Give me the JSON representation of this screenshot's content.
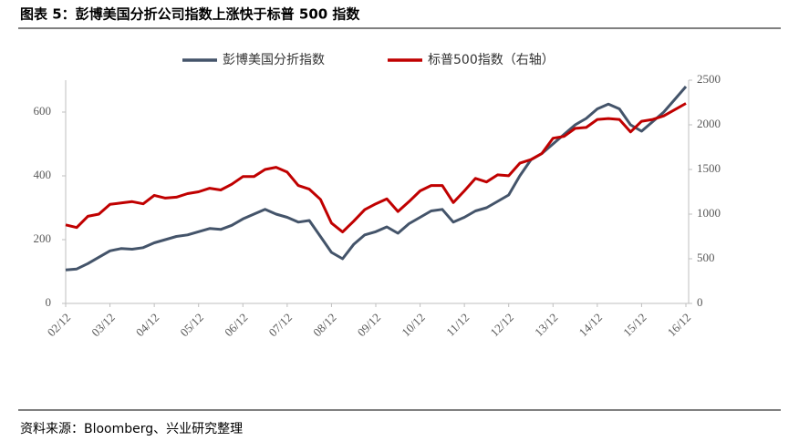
{
  "title": "图表 5：彭博美国分折公司指数上涨快于标普 500 指数",
  "source": "资料来源：Bloomberg、兴业研究整理",
  "chart_data": {
    "type": "line",
    "x": [
      "02/12",
      "03/03",
      "03/06",
      "03/09",
      "03/12",
      "04/03",
      "04/06",
      "04/09",
      "04/12",
      "05/03",
      "05/06",
      "05/09",
      "05/12",
      "06/03",
      "06/06",
      "06/09",
      "06/12",
      "07/03",
      "07/06",
      "07/09",
      "07/12",
      "08/03",
      "08/06",
      "08/09",
      "08/12",
      "09/03",
      "09/06",
      "09/09",
      "09/12",
      "10/03",
      "10/06",
      "10/09",
      "10/12",
      "11/03",
      "11/06",
      "11/09",
      "11/12",
      "12/03",
      "12/06",
      "12/09",
      "12/12",
      "13/03",
      "13/06",
      "13/09",
      "13/12",
      "14/03",
      "14/06",
      "14/09",
      "14/12",
      "15/03",
      "15/06",
      "15/09",
      "15/12",
      "16/03",
      "16/06",
      "16/09",
      "16/12"
    ],
    "xticks": [
      "02/12",
      "03/12",
      "04/12",
      "05/12",
      "06/12",
      "07/12",
      "08/12",
      "09/12",
      "10/12",
      "11/12",
      "12/12",
      "13/12",
      "14/12",
      "15/12",
      "16/12"
    ],
    "ylim": [
      0,
      700
    ],
    "yticks": [
      0,
      200,
      400,
      600
    ],
    "y2lim": [
      0,
      2500
    ],
    "y2ticks": [
      0,
      500,
      1000,
      1500,
      2000,
      2500
    ],
    "series": [
      {
        "name": "彭博美国分折指数",
        "color": "#44546a",
        "axis": "y",
        "values": [
          105,
          108,
          125,
          145,
          165,
          172,
          170,
          175,
          190,
          200,
          210,
          215,
          225,
          235,
          232,
          245,
          265,
          280,
          295,
          280,
          270,
          255,
          260,
          210,
          160,
          140,
          185,
          215,
          225,
          240,
          220,
          250,
          270,
          290,
          295,
          255,
          270,
          290,
          300,
          320,
          340,
          400,
          450,
          470,
          500,
          530,
          560,
          580,
          610,
          625,
          610,
          560,
          540,
          570,
          600,
          640,
          680
        ]
      },
      {
        "name": "标普500指数（右轴）",
        "color": "#c00000",
        "axis": "y2",
        "values": [
          880,
          850,
          975,
          1000,
          1110,
          1125,
          1140,
          1115,
          1210,
          1180,
          1190,
          1230,
          1250,
          1290,
          1270,
          1335,
          1420,
          1420,
          1500,
          1525,
          1470,
          1320,
          1280,
          1165,
          900,
          800,
          920,
          1050,
          1115,
          1170,
          1030,
          1140,
          1260,
          1320,
          1320,
          1130,
          1260,
          1400,
          1360,
          1440,
          1430,
          1570,
          1610,
          1680,
          1850,
          1870,
          1960,
          1970,
          2060,
          2070,
          2060,
          1920,
          2040,
          2060,
          2100,
          2170,
          2240
        ]
      }
    ]
  }
}
